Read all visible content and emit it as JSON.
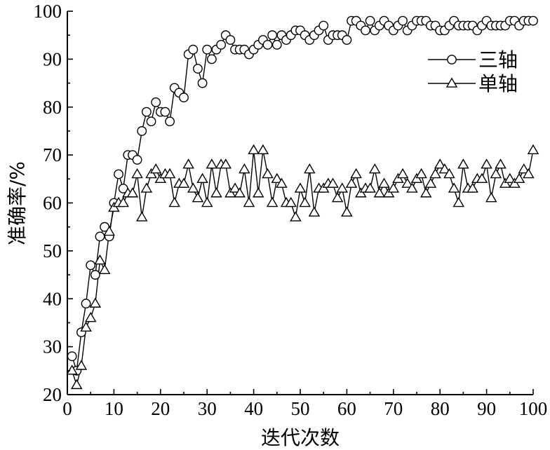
{
  "chart_data": {
    "type": "line",
    "title": "",
    "xlabel": "迭代次数",
    "ylabel": "准确率/%",
    "xlim": [
      0,
      100
    ],
    "ylim": [
      20,
      100
    ],
    "xticks": [
      0,
      10,
      20,
      30,
      40,
      50,
      60,
      70,
      80,
      90,
      100
    ],
    "yticks": [
      20,
      30,
      40,
      50,
      60,
      70,
      80,
      90,
      100
    ],
    "grid": false,
    "legend_position": "top-right",
    "x": [
      1,
      2,
      3,
      4,
      5,
      6,
      7,
      8,
      9,
      10,
      11,
      12,
      13,
      14,
      15,
      16,
      17,
      18,
      19,
      20,
      21,
      22,
      23,
      24,
      25,
      26,
      27,
      28,
      29,
      30,
      31,
      32,
      33,
      34,
      35,
      36,
      37,
      38,
      39,
      40,
      41,
      42,
      43,
      44,
      45,
      46,
      47,
      48,
      49,
      50,
      51,
      52,
      53,
      54,
      55,
      56,
      57,
      58,
      59,
      60,
      61,
      62,
      63,
      64,
      65,
      66,
      67,
      68,
      69,
      70,
      71,
      72,
      73,
      74,
      75,
      76,
      77,
      78,
      79,
      80,
      81,
      82,
      83,
      84,
      85,
      86,
      87,
      88,
      89,
      90,
      91,
      92,
      93,
      94,
      95,
      96,
      97,
      98,
      99,
      100
    ],
    "series": [
      {
        "name": "三轴",
        "marker": "circle",
        "values": [
          28,
          25,
          33,
          39,
          47,
          45,
          53,
          55,
          53,
          60,
          66,
          63,
          70,
          70,
          69,
          75,
          79,
          77,
          81,
          79,
          79,
          77,
          84,
          83,
          82,
          91,
          92,
          88,
          85,
          92,
          90,
          92,
          93,
          95,
          94,
          92,
          92,
          92,
          91,
          92,
          93,
          94,
          93,
          95,
          93,
          95,
          94,
          95,
          96,
          96,
          95,
          94,
          95,
          96,
          97,
          94,
          95,
          95,
          95,
          94,
          98,
          98,
          97,
          96,
          98,
          96,
          97,
          98,
          97,
          96,
          97,
          98,
          96,
          97,
          98,
          98,
          98,
          97,
          97,
          96,
          96,
          97,
          98,
          97,
          97,
          97,
          97,
          96,
          97,
          98,
          97,
          97,
          97,
          97,
          98,
          98,
          97,
          98,
          98,
          98
        ]
      },
      {
        "name": "单轴",
        "marker": "triangle",
        "values": [
          25,
          22,
          26,
          34,
          36,
          39,
          48,
          46,
          54,
          59,
          60,
          60,
          62,
          62,
          66,
          57,
          63,
          66,
          67,
          65,
          66,
          66,
          60,
          64,
          64,
          68,
          63,
          61,
          65,
          60,
          68,
          62,
          68,
          68,
          62,
          63,
          62,
          67,
          60,
          71,
          62,
          71,
          66,
          60,
          65,
          64,
          60,
          60,
          57,
          63,
          60,
          67,
          58,
          63,
          63,
          64,
          64,
          61,
          63,
          58,
          64,
          66,
          62,
          63,
          63,
          67,
          62,
          64,
          62,
          63,
          65,
          66,
          64,
          63,
          65,
          66,
          62,
          64,
          66,
          68,
          67,
          66,
          63,
          60,
          68,
          63,
          63,
          65,
          65,
          68,
          61,
          66,
          68,
          64,
          65,
          64,
          65,
          67,
          66,
          71
        ]
      }
    ]
  }
}
